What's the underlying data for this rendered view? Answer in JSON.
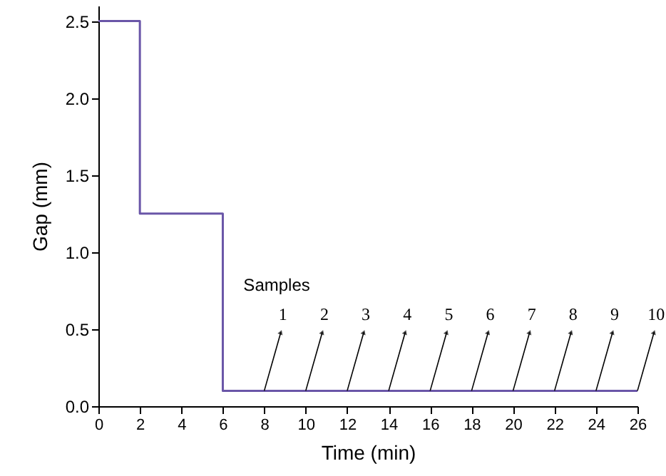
{
  "chart_data": {
    "type": "step",
    "xlabel": "Time (min)",
    "ylabel": "Gap (mm)",
    "x": [
      0,
      2,
      6,
      26
    ],
    "series": [
      {
        "color": "#6a56a8",
        "values": [
          2.5,
          1.25,
          0.1,
          0.1
        ]
      }
    ],
    "xlim": [
      0,
      26
    ],
    "xticks": [
      0,
      2,
      4,
      6,
      8,
      10,
      12,
      14,
      16,
      18,
      20,
      22,
      24,
      26
    ],
    "ylim": [
      0,
      2.6
    ],
    "yticks": [
      {
        "value": 0,
        "label": "0.0"
      },
      0.5,
      {
        "value": 1,
        "label": "1.0"
      },
      1.5,
      {
        "value": 2,
        "label": "2.0"
      },
      2.5
    ],
    "grid": false,
    "annotations": [
      "Samples",
      {
        "text": "1",
        "x": 8,
        "y": 0.1
      },
      {
        "text": "2",
        "x": 10,
        "y": 0.1
      },
      {
        "text": "3",
        "x": 12,
        "y": 0.1
      },
      {
        "text": "4",
        "x": 14,
        "y": 0.1
      },
      {
        "text": "5",
        "x": 16,
        "y": 0.1
      },
      {
        "text": "6",
        "x": 18,
        "y": 0.1
      },
      {
        "text": "7",
        "x": 20,
        "y": 0.1
      },
      {
        "text": "8",
        "x": 22,
        "y": 0.1
      },
      {
        "text": "9",
        "x": 24,
        "y": 0.1
      },
      {
        "text": "10",
        "x": 26,
        "y": 0.1
      }
    ]
  }
}
